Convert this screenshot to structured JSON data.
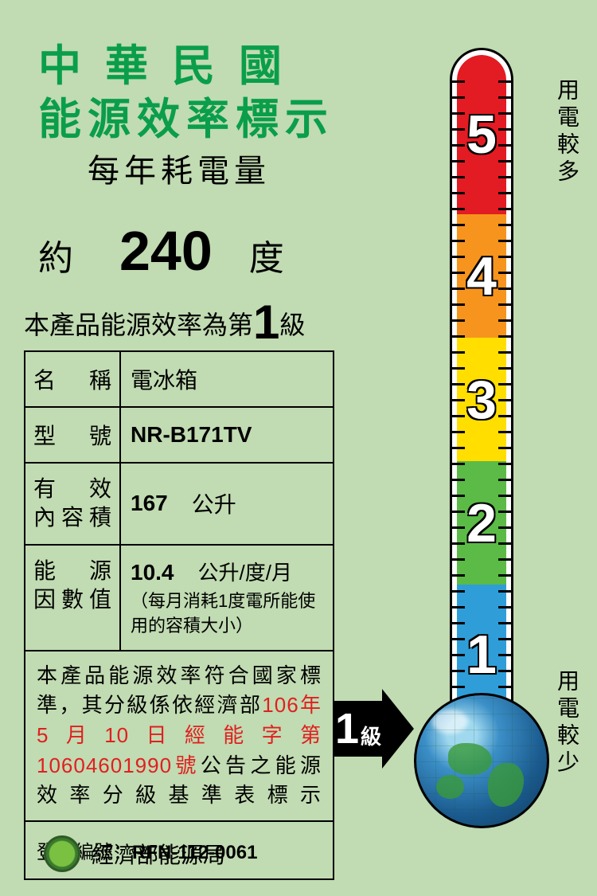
{
  "header": {
    "title_line1": "中華民國",
    "title_line2": "能源效率標示",
    "subtitle": "每年耗電量",
    "title_color": "#0a9e4a"
  },
  "consumption": {
    "approx": "約",
    "value": "240",
    "unit": "度"
  },
  "grade_line": {
    "prefix": "本產品能源效率為第",
    "grade": "1",
    "suffix": "級"
  },
  "table": {
    "rows": [
      {
        "label": "名　稱",
        "value": "電冰箱",
        "unit": ""
      },
      {
        "label": "型　號",
        "value": "NR-B171TV",
        "unit": ""
      },
      {
        "label": "有　效內容積",
        "value": "167",
        "unit": "公升"
      }
    ],
    "ef": {
      "label": "能　源因數值",
      "value": "10.4",
      "unit": "公升/度/月",
      "note": "（每月消耗1度電所能使用的容積大小）"
    },
    "compliance": {
      "line1": "本產品能源效率符合國家標準，其分級係依經濟部",
      "red": "106年5月10日經能字第10604601990號",
      "line2": "公告之能源效率分級基準表標示"
    },
    "reg": {
      "label": "登錄編號：",
      "value": "RFN-112-0061"
    }
  },
  "arrow": {
    "grade": "1",
    "suffix": "級"
  },
  "footer": {
    "text": "經濟部能源局"
  },
  "thermometer": {
    "segments": [
      {
        "n": "5",
        "color": "#e31b23"
      },
      {
        "n": "4",
        "color": "#f7941d"
      },
      {
        "n": "3",
        "color": "#ffde00"
      },
      {
        "n": "2",
        "color": "#5bbb46"
      },
      {
        "n": "1",
        "color": "#2f9ed8"
      }
    ],
    "label_top": "用電較多",
    "label_bottom": "用電較少",
    "tick_count": 40,
    "background_color": "#c1dbb2"
  }
}
